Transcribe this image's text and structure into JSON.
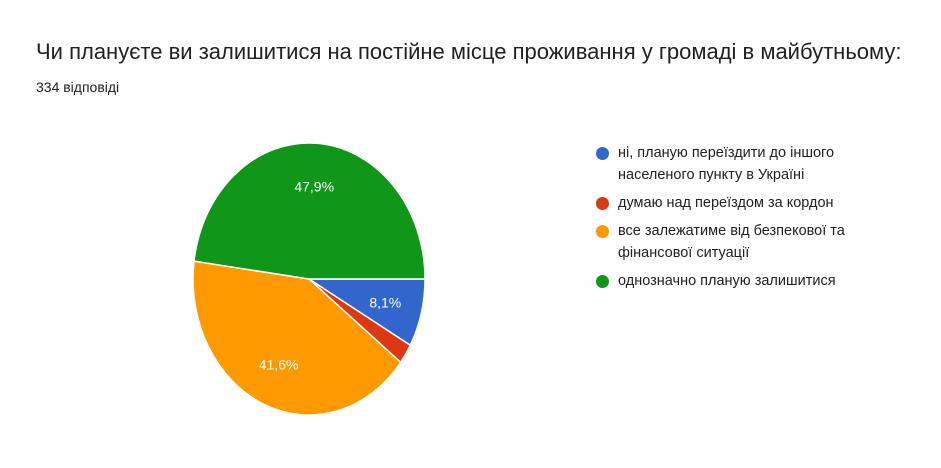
{
  "chart_data": {
    "type": "pie",
    "title": "Чи плануєте ви залишитися на постійне місце проживання у громаді в майбутньому:",
    "subtitle": "334 відповіді",
    "legend_position": "right",
    "slices": [
      {
        "label": "ні, планую переїздити до іншого населеного пункту в Україні",
        "value": 8.1,
        "display": "8,1%",
        "color": "#3366cc"
      },
      {
        "label": "думаю над переїздом за кордон",
        "value": 2.4,
        "display": "",
        "color": "#dc3912"
      },
      {
        "label": "все залежатиме від безпекової та фінансової ситуації",
        "value": 41.6,
        "display": "41,6%",
        "color": "#ff9900"
      },
      {
        "label": "однозначно планую залишитися",
        "value": 47.9,
        "display": "47,9%",
        "color": "#109618"
      }
    ]
  }
}
